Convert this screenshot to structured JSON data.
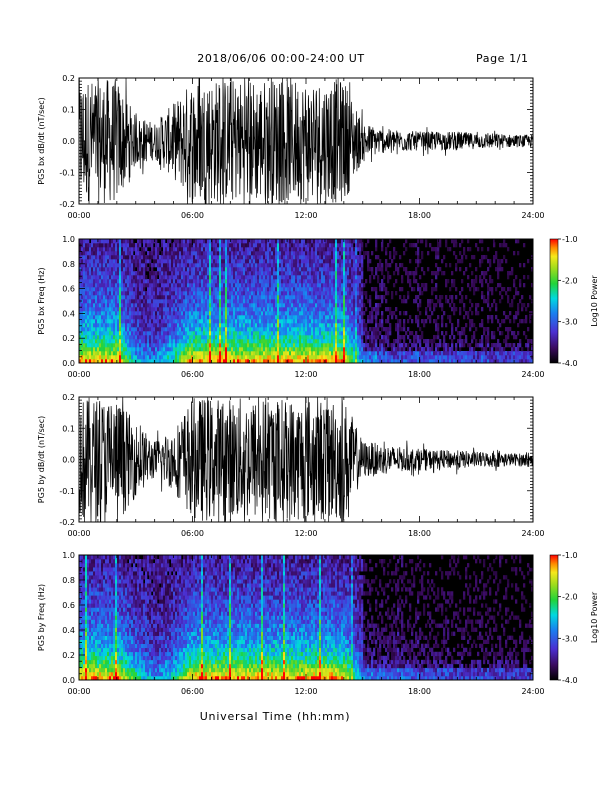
{
  "header": {
    "title": "2018/06/06  00:00-24:00 UT",
    "page": "Page 1/1"
  },
  "colorbar": {
    "label": "Log10 Power",
    "ticks": [
      "-1.0",
      "-2.0",
      "-3.0",
      "-4.0"
    ],
    "range": [
      -4.0,
      -1.0
    ]
  },
  "chart_data": [
    {
      "type": "line",
      "ylabel": "PG5 bx dB/dt (nT/sec)",
      "xlabel": "",
      "x_ticks": [
        "00:00",
        "06:00",
        "12:00",
        "18:00",
        "24:00"
      ],
      "y_ticks": [
        "0.2",
        "0.1",
        "0.0",
        "-0.1",
        "-0.2"
      ],
      "xlim": [
        0,
        24
      ],
      "ylim": [
        -0.2,
        0.2
      ],
      "series": [
        {
          "x": [
            0,
            1,
            2,
            3,
            4,
            5,
            6,
            7,
            8,
            9,
            10,
            11,
            12,
            13,
            14,
            15,
            16,
            17,
            18,
            19,
            20,
            21,
            22,
            23,
            24
          ],
          "amplitude": [
            0.2,
            0.2,
            0.2,
            0.08,
            0.06,
            0.12,
            0.2,
            0.2,
            0.2,
            0.2,
            0.2,
            0.2,
            0.2,
            0.2,
            0.2,
            0.06,
            0.04,
            0.035,
            0.03,
            0.03,
            0.03,
            0.025,
            0.025,
            0.02,
            0.02
          ]
        }
      ]
    },
    {
      "type": "heatmap",
      "ylabel": "PG5 bx Freq (Hz)",
      "xlabel": "",
      "x_ticks": [
        "00:00",
        "06:00",
        "12:00",
        "18:00",
        "24:00"
      ],
      "y_ticks": [
        "1.0",
        "0.8",
        "0.6",
        "0.4",
        "0.2",
        "0.0"
      ],
      "xlim": [
        0,
        24
      ],
      "ylim": [
        0.0,
        1.0
      ],
      "zlim": [
        -4.0,
        -1.0
      ]
    },
    {
      "type": "line",
      "ylabel": "PG5 by dB/dt (nT/sec)",
      "xlabel": "",
      "x_ticks": [
        "00:00",
        "06:00",
        "12:00",
        "18:00",
        "24:00"
      ],
      "y_ticks": [
        "0.2",
        "0.1",
        "0.0",
        "-0.1",
        "-0.2"
      ],
      "xlim": [
        0,
        24
      ],
      "ylim": [
        -0.2,
        0.2
      ],
      "series": [
        {
          "x": [
            0,
            1,
            2,
            3,
            4,
            5,
            6,
            7,
            8,
            9,
            10,
            11,
            12,
            13,
            14,
            15,
            16,
            17,
            18,
            19,
            20,
            21,
            22,
            23,
            24
          ],
          "amplitude": [
            0.2,
            0.2,
            0.2,
            0.12,
            0.06,
            0.1,
            0.2,
            0.2,
            0.2,
            0.2,
            0.2,
            0.2,
            0.2,
            0.2,
            0.2,
            0.06,
            0.05,
            0.04,
            0.035,
            0.03,
            0.03,
            0.025,
            0.025,
            0.02,
            0.02
          ]
        }
      ]
    },
    {
      "type": "heatmap",
      "ylabel": "PG5 by Freq (Hz)",
      "xlabel": "Universal Time (hh:mm)",
      "x_ticks": [
        "00:00",
        "06:00",
        "12:00",
        "18:00",
        "24:00"
      ],
      "y_ticks": [
        "1.0",
        "0.8",
        "0.6",
        "0.4",
        "0.2",
        "0.0"
      ],
      "xlim": [
        0,
        24
      ],
      "ylim": [
        0.0,
        1.0
      ],
      "zlim": [
        -4.0,
        -1.0
      ]
    }
  ]
}
